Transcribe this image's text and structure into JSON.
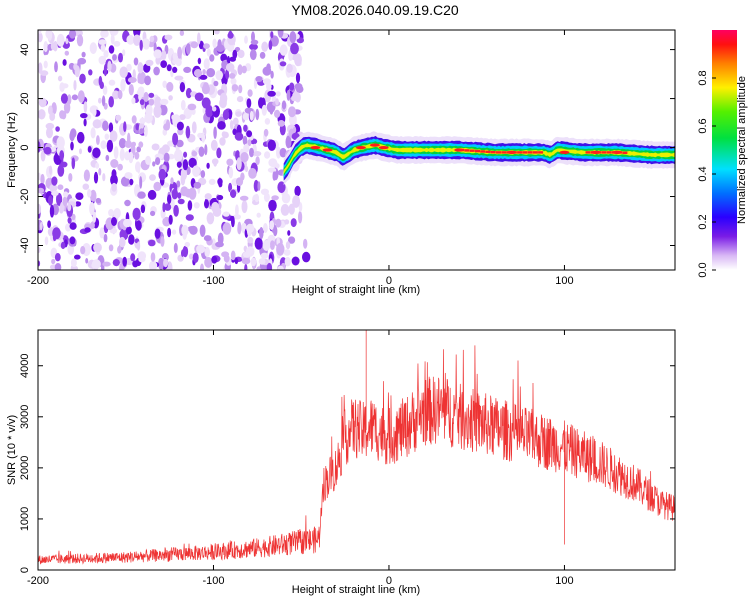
{
  "figure_title": "YM08.2026.040.09.19.C20",
  "colors": {
    "snr_line": "#ee3333",
    "background": "#ffffff",
    "axis": "#000000"
  },
  "chart_data": [
    {
      "type": "heatmap",
      "name": "spectrogram",
      "xlabel": "Height of straight line (km)",
      "ylabel": "Frequency (Hz)",
      "xlim": [
        -200,
        163
      ],
      "ylim": [
        -50,
        48
      ],
      "x_ticks": [
        -200,
        -100,
        0,
        100
      ],
      "x_tick_labels": [
        "-200",
        "-100",
        "0",
        "100"
      ],
      "y_ticks": [
        -40,
        -20,
        0,
        20,
        40
      ],
      "y_tick_labels": [
        "-40",
        "-20",
        "0",
        "20",
        "40"
      ],
      "noise_region": [
        -200,
        -50
      ],
      "signal_track": [
        [
          -60,
          -10
        ],
        [
          -57,
          -7
        ],
        [
          -54,
          -3
        ],
        [
          -50,
          0
        ],
        [
          -47,
          1
        ],
        [
          -40,
          0
        ],
        [
          -35,
          -1
        ],
        [
          -30,
          -2
        ],
        [
          -26,
          -4
        ],
        [
          -20,
          -1
        ],
        [
          -15,
          0
        ],
        [
          -8,
          1
        ],
        [
          -3,
          0
        ],
        [
          5,
          -1
        ],
        [
          20,
          -1
        ],
        [
          40,
          -1
        ],
        [
          60,
          -2
        ],
        [
          80,
          -2
        ],
        [
          88,
          -2
        ],
        [
          92,
          -3
        ],
        [
          96,
          -1
        ],
        [
          110,
          -2
        ],
        [
          130,
          -2
        ],
        [
          150,
          -3
        ],
        [
          163,
          -3
        ]
      ],
      "signal_peak": [
        [
          -42,
          0
        ],
        [
          -35,
          -1
        ],
        [
          -16,
          0
        ],
        [
          -8,
          1
        ],
        [
          -3,
          0
        ],
        [
          40,
          -1
        ],
        [
          70,
          -2
        ],
        [
          100,
          -2
        ],
        [
          118,
          -2
        ],
        [
          130,
          -2
        ]
      ],
      "colorbar": {
        "label": "Normalized spectral amplitude",
        "range": [
          0,
          1
        ],
        "ticks": [
          0.0,
          0.2,
          0.4,
          0.6,
          0.8
        ],
        "tick_labels": [
          "0.0",
          "0.2",
          "0.4",
          "0.6",
          "0.8"
        ]
      }
    },
    {
      "type": "line",
      "name": "snr",
      "xlabel": "Height of straight line (km)",
      "ylabel": "SNR (10 * v/v)",
      "xlim": [
        -200,
        163
      ],
      "ylim": [
        0,
        4700
      ],
      "x_ticks": [
        -200,
        -100,
        0,
        100
      ],
      "x_tick_labels": [
        "-200",
        "-100",
        "0",
        "100"
      ],
      "y_ticks": [
        0,
        1000,
        2000,
        3000,
        4000
      ],
      "y_tick_labels": [
        "0",
        "1000",
        "2000",
        "3000",
        "4000"
      ],
      "envelope": [
        [
          -200,
          200
        ],
        [
          -150,
          250
        ],
        [
          -100,
          350
        ],
        [
          -70,
          450
        ],
        [
          -50,
          550
        ],
        [
          -40,
          600
        ],
        [
          -37,
          1700
        ],
        [
          -30,
          2000
        ],
        [
          -25,
          2600
        ],
        [
          -20,
          2800
        ],
        [
          -15,
          2700
        ],
        [
          -10,
          2800
        ],
        [
          0,
          2600
        ],
        [
          10,
          2800
        ],
        [
          20,
          3100
        ],
        [
          30,
          3150
        ],
        [
          40,
          3000
        ],
        [
          60,
          2800
        ],
        [
          80,
          2600
        ],
        [
          100,
          2400
        ],
        [
          120,
          2100
        ],
        [
          140,
          1700
        ],
        [
          155,
          1300
        ],
        [
          163,
          1200
        ]
      ],
      "spikes": [
        [
          -13,
          4700
        ],
        [
          100,
          2900
        ],
        [
          100,
          500
        ]
      ]
    }
  ]
}
